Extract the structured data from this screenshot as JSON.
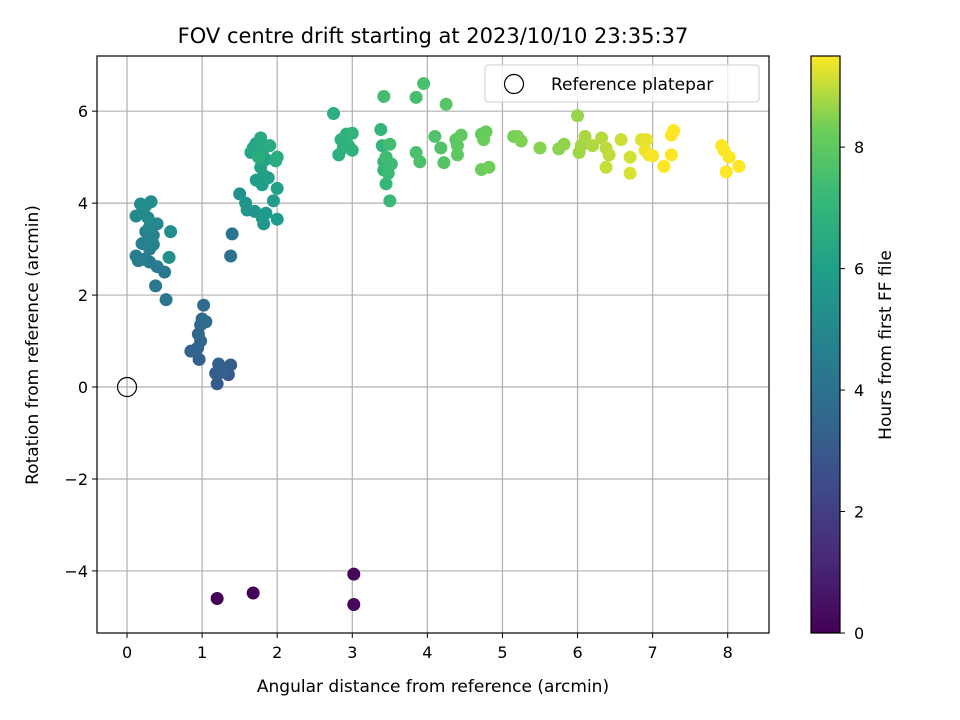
{
  "chart_data": {
    "type": "scatter",
    "title": "FOV centre drift starting at 2023/10/10 23:35:37",
    "xlabel": "Angular distance from reference (arcmin)",
    "ylabel": "Rotation from reference (arcmin)",
    "xlim": [
      -0.4,
      8.55
    ],
    "ylim": [
      -5.35,
      7.2
    ],
    "xticks": [
      0,
      1,
      2,
      3,
      4,
      5,
      6,
      7,
      8
    ],
    "yticks": [
      -4,
      -2,
      0,
      2,
      4,
      6
    ],
    "ytick_labels": [
      "−4",
      "−2",
      "0",
      "2",
      "4",
      "6"
    ],
    "grid": true,
    "legend": {
      "position": "upper-right",
      "entries": [
        "Reference platepar"
      ]
    },
    "reference_point": {
      "x": 0,
      "y": 0,
      "label": "Reference platepar"
    },
    "colorbar": {
      "label": "Hours from first FF file",
      "colormap": "viridis",
      "range": [
        0,
        9.5
      ],
      "ticks": [
        0,
        2,
        4,
        6,
        8
      ]
    },
    "points": [
      {
        "x": 1.2,
        "y": -4.6,
        "h": 0.05
      },
      {
        "x": 1.68,
        "y": -4.48,
        "h": 0.1
      },
      {
        "x": 3.02,
        "y": -4.07,
        "h": 0.15
      },
      {
        "x": 3.02,
        "y": -4.73,
        "h": 0.2
      },
      {
        "x": 1.2,
        "y": 0.07,
        "h": 3.0
      },
      {
        "x": 1.35,
        "y": 0.27,
        "h": 3.05
      },
      {
        "x": 1.18,
        "y": 0.3,
        "h": 3.1
      },
      {
        "x": 1.38,
        "y": 0.48,
        "h": 3.15
      },
      {
        "x": 1.22,
        "y": 0.5,
        "h": 3.2
      },
      {
        "x": 1.26,
        "y": 0.32,
        "h": 3.25
      },
      {
        "x": 0.96,
        "y": 0.6,
        "h": 3.3
      },
      {
        "x": 0.85,
        "y": 0.78,
        "h": 3.4
      },
      {
        "x": 0.94,
        "y": 0.85,
        "h": 3.45
      },
      {
        "x": 0.98,
        "y": 1.0,
        "h": 3.5
      },
      {
        "x": 0.95,
        "y": 1.15,
        "h": 3.55
      },
      {
        "x": 0.98,
        "y": 1.35,
        "h": 3.6
      },
      {
        "x": 1.0,
        "y": 1.48,
        "h": 3.65
      },
      {
        "x": 1.05,
        "y": 1.42,
        "h": 3.7
      },
      {
        "x": 1.02,
        "y": 1.78,
        "h": 3.75
      },
      {
        "x": 1.38,
        "y": 2.85,
        "h": 4.0
      },
      {
        "x": 1.4,
        "y": 3.33,
        "h": 4.1
      },
      {
        "x": 0.52,
        "y": 1.9,
        "h": 4.2
      },
      {
        "x": 0.38,
        "y": 2.2,
        "h": 4.25
      },
      {
        "x": 0.5,
        "y": 2.5,
        "h": 4.3
      },
      {
        "x": 0.4,
        "y": 2.62,
        "h": 4.35
      },
      {
        "x": 0.3,
        "y": 2.72,
        "h": 4.4
      },
      {
        "x": 0.15,
        "y": 2.75,
        "h": 4.45
      },
      {
        "x": 0.12,
        "y": 2.85,
        "h": 4.5
      },
      {
        "x": 0.22,
        "y": 2.78,
        "h": 4.55
      },
      {
        "x": 0.3,
        "y": 3.0,
        "h": 4.6
      },
      {
        "x": 0.2,
        "y": 3.12,
        "h": 4.65
      },
      {
        "x": 0.35,
        "y": 3.1,
        "h": 4.7
      },
      {
        "x": 0.3,
        "y": 3.2,
        "h": 4.75
      },
      {
        "x": 0.25,
        "y": 3.38,
        "h": 4.8
      },
      {
        "x": 0.35,
        "y": 3.3,
        "h": 4.85
      },
      {
        "x": 0.3,
        "y": 3.48,
        "h": 4.9
      },
      {
        "x": 0.4,
        "y": 3.55,
        "h": 4.95
      },
      {
        "x": 0.12,
        "y": 3.72,
        "h": 5.0
      },
      {
        "x": 0.22,
        "y": 3.78,
        "h": 5.05
      },
      {
        "x": 0.28,
        "y": 3.68,
        "h": 5.1
      },
      {
        "x": 0.18,
        "y": 3.98,
        "h": 5.15
      },
      {
        "x": 0.25,
        "y": 3.95,
        "h": 5.2
      },
      {
        "x": 0.32,
        "y": 4.03,
        "h": 5.25
      },
      {
        "x": 0.58,
        "y": 3.38,
        "h": 5.3
      },
      {
        "x": 0.56,
        "y": 2.82,
        "h": 5.35
      },
      {
        "x": 1.5,
        "y": 4.2,
        "h": 5.4
      },
      {
        "x": 1.6,
        "y": 3.85,
        "h": 5.5
      },
      {
        "x": 1.58,
        "y": 4.0,
        "h": 5.55
      },
      {
        "x": 1.7,
        "y": 3.82,
        "h": 5.6
      },
      {
        "x": 1.82,
        "y": 3.55,
        "h": 5.65
      },
      {
        "x": 1.8,
        "y": 3.68,
        "h": 5.7
      },
      {
        "x": 1.85,
        "y": 3.78,
        "h": 5.75
      },
      {
        "x": 2.0,
        "y": 3.65,
        "h": 5.8
      },
      {
        "x": 1.95,
        "y": 4.05,
        "h": 5.85
      },
      {
        "x": 1.72,
        "y": 4.5,
        "h": 5.9
      },
      {
        "x": 1.8,
        "y": 4.4,
        "h": 5.95
      },
      {
        "x": 1.82,
        "y": 4.6,
        "h": 6.0
      },
      {
        "x": 1.88,
        "y": 4.55,
        "h": 6.05
      },
      {
        "x": 2.0,
        "y": 4.32,
        "h": 6.1
      },
      {
        "x": 1.78,
        "y": 4.78,
        "h": 6.15
      },
      {
        "x": 1.85,
        "y": 4.95,
        "h": 6.2
      },
      {
        "x": 1.65,
        "y": 5.1,
        "h": 6.25
      },
      {
        "x": 1.68,
        "y": 5.2,
        "h": 6.3
      },
      {
        "x": 1.72,
        "y": 5.3,
        "h": 6.35
      },
      {
        "x": 1.78,
        "y": 5.42,
        "h": 6.4
      },
      {
        "x": 1.82,
        "y": 5.18,
        "h": 6.45
      },
      {
        "x": 1.9,
        "y": 5.25,
        "h": 6.5
      },
      {
        "x": 1.98,
        "y": 4.92,
        "h": 6.55
      },
      {
        "x": 2.0,
        "y": 5.0,
        "h": 6.6
      },
      {
        "x": 1.75,
        "y": 5.0,
        "h": 6.65
      },
      {
        "x": 2.75,
        "y": 5.95,
        "h": 6.7
      },
      {
        "x": 2.82,
        "y": 5.05,
        "h": 6.75
      },
      {
        "x": 2.88,
        "y": 5.2,
        "h": 6.8
      },
      {
        "x": 2.85,
        "y": 5.38,
        "h": 6.85
      },
      {
        "x": 2.92,
        "y": 5.5,
        "h": 6.9
      },
      {
        "x": 3.0,
        "y": 5.15,
        "h": 6.95
      },
      {
        "x": 3.0,
        "y": 5.52,
        "h": 7.0
      },
      {
        "x": 2.95,
        "y": 5.25,
        "h": 6.9
      },
      {
        "x": 3.38,
        "y": 5.6,
        "h": 7.0
      },
      {
        "x": 3.4,
        "y": 5.25,
        "h": 7.0
      },
      {
        "x": 3.42,
        "y": 4.9,
        "h": 7.05
      },
      {
        "x": 3.42,
        "y": 4.72,
        "h": 7.1
      },
      {
        "x": 3.45,
        "y": 4.42,
        "h": 7.15
      },
      {
        "x": 3.5,
        "y": 4.05,
        "h": 7.2
      },
      {
        "x": 3.48,
        "y": 4.65,
        "h": 7.25
      },
      {
        "x": 3.52,
        "y": 4.85,
        "h": 7.3
      },
      {
        "x": 3.45,
        "y": 5.0,
        "h": 7.35
      },
      {
        "x": 3.5,
        "y": 5.28,
        "h": 7.4
      },
      {
        "x": 3.42,
        "y": 6.32,
        "h": 7.45
      },
      {
        "x": 3.85,
        "y": 6.3,
        "h": 7.5
      },
      {
        "x": 3.95,
        "y": 6.6,
        "h": 7.55
      },
      {
        "x": 3.85,
        "y": 5.1,
        "h": 7.6
      },
      {
        "x": 3.9,
        "y": 4.9,
        "h": 7.65
      },
      {
        "x": 4.1,
        "y": 5.45,
        "h": 7.7
      },
      {
        "x": 4.18,
        "y": 5.2,
        "h": 7.75
      },
      {
        "x": 4.22,
        "y": 4.88,
        "h": 7.8
      },
      {
        "x": 4.25,
        "y": 6.15,
        "h": 7.85
      },
      {
        "x": 4.38,
        "y": 5.38,
        "h": 7.9
      },
      {
        "x": 4.4,
        "y": 5.25,
        "h": 7.95
      },
      {
        "x": 4.4,
        "y": 5.05,
        "h": 8.0
      },
      {
        "x": 4.45,
        "y": 5.48,
        "h": 8.05
      },
      {
        "x": 4.72,
        "y": 5.5,
        "h": 8.1
      },
      {
        "x": 4.78,
        "y": 5.55,
        "h": 8.15
      },
      {
        "x": 4.75,
        "y": 5.38,
        "h": 8.2
      },
      {
        "x": 4.72,
        "y": 4.73,
        "h": 8.25
      },
      {
        "x": 4.82,
        "y": 4.78,
        "h": 8.3
      },
      {
        "x": 5.15,
        "y": 5.45,
        "h": 8.35
      },
      {
        "x": 5.2,
        "y": 5.45,
        "h": 8.4
      },
      {
        "x": 5.25,
        "y": 5.35,
        "h": 8.45
      },
      {
        "x": 5.5,
        "y": 5.2,
        "h": 8.5
      },
      {
        "x": 5.75,
        "y": 5.18,
        "h": 8.55
      },
      {
        "x": 5.82,
        "y": 5.28,
        "h": 8.6
      },
      {
        "x": 6.0,
        "y": 5.9,
        "h": 8.65
      },
      {
        "x": 6.02,
        "y": 5.1,
        "h": 8.7
      },
      {
        "x": 6.05,
        "y": 5.25,
        "h": 8.75
      },
      {
        "x": 6.1,
        "y": 5.45,
        "h": 8.8
      },
      {
        "x": 6.2,
        "y": 5.25,
        "h": 8.85
      },
      {
        "x": 6.32,
        "y": 5.42,
        "h": 8.9
      },
      {
        "x": 6.38,
        "y": 5.2,
        "h": 8.95
      },
      {
        "x": 6.42,
        "y": 5.05,
        "h": 9.0
      },
      {
        "x": 6.38,
        "y": 4.78,
        "h": 9.05
      },
      {
        "x": 6.58,
        "y": 5.38,
        "h": 9.1
      },
      {
        "x": 6.7,
        "y": 5.0,
        "h": 9.15
      },
      {
        "x": 6.7,
        "y": 4.65,
        "h": 9.2
      },
      {
        "x": 6.85,
        "y": 5.38,
        "h": 9.25
      },
      {
        "x": 6.92,
        "y": 5.38,
        "h": 9.3
      },
      {
        "x": 6.9,
        "y": 5.15,
        "h": 9.35
      },
      {
        "x": 6.95,
        "y": 5.05,
        "h": 9.4
      },
      {
        "x": 7.0,
        "y": 5.03,
        "h": 9.45
      },
      {
        "x": 7.15,
        "y": 4.8,
        "h": 9.5
      },
      {
        "x": 7.25,
        "y": 5.05,
        "h": 9.5
      },
      {
        "x": 7.25,
        "y": 5.48,
        "h": 9.55
      },
      {
        "x": 7.28,
        "y": 5.58,
        "h": 9.6
      },
      {
        "x": 7.92,
        "y": 5.25,
        "h": 9.65
      },
      {
        "x": 7.95,
        "y": 5.15,
        "h": 9.7
      },
      {
        "x": 7.98,
        "y": 4.68,
        "h": 9.75
      },
      {
        "x": 8.02,
        "y": 5.0,
        "h": 9.8
      },
      {
        "x": 8.15,
        "y": 4.8,
        "h": 9.85
      }
    ]
  }
}
